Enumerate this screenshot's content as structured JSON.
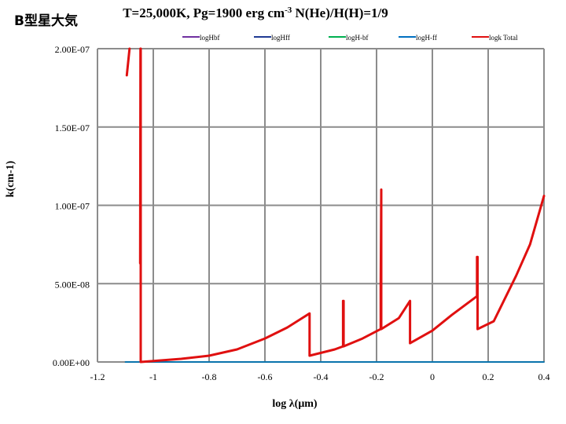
{
  "corner_label": "B型星大気",
  "chart_data": {
    "type": "line",
    "title": "T=25,000K, Pg=1900 erg cm-3 N(He)/H(H)=1/9",
    "title_parts": {
      "before": "T=25,000K, Pg=1900 erg cm",
      "sup": "-3",
      "after": " N(He)/H(H)=1/9"
    },
    "xlabel": "log λ(μm)",
    "ylabel": "k(cm-1)",
    "xlim": [
      -1.2,
      0.4
    ],
    "ylim": [
      0,
      2e-07
    ],
    "x_ticks": [
      -1.2,
      -1,
      -0.8,
      -0.6,
      -0.4,
      -0.2,
      0,
      0.2,
      0.4
    ],
    "x_tick_labels": [
      "-1.2",
      "-1",
      "-0.8",
      "-0.6",
      "-0.4",
      "-0.2",
      "0",
      "0.2",
      "0.4"
    ],
    "y_ticks": [
      0,
      5e-08,
      1e-07,
      1.5e-07,
      2e-07
    ],
    "y_tick_labels": [
      "0.00E+00",
      "5.00E-08",
      "1.00E-07",
      "1.50E-07",
      "2.00E-07"
    ],
    "grid": true,
    "legend_position": "top",
    "series": [
      {
        "name": "logHbf",
        "color": "#7030a0",
        "x": [
          -1.1,
          0.4
        ],
        "y": [
          0,
          0
        ]
      },
      {
        "name": "logHff",
        "color": "#1f3a93",
        "x": [
          -1.1,
          0.4
        ],
        "y": [
          0,
          0
        ]
      },
      {
        "name": "logH-bf",
        "color": "#00b050",
        "x": [
          -1.1,
          0.4
        ],
        "y": [
          0,
          0
        ]
      },
      {
        "name": "logH-ff",
        "color": "#0070c0",
        "x": [
          -1.1,
          0.4
        ],
        "y": [
          0,
          0
        ]
      },
      {
        "name": "logk Total",
        "color": "#e01010",
        "segments": [
          {
            "x": [
              -1.095,
              -1.085
            ],
            "y": [
              1.83e-07,
              2e-07
            ]
          },
          {
            "x": [
              -1.047,
              -1.046,
              -1.047
            ],
            "y": [
              6.3e-08,
              2e-07,
              6.3e-08
            ]
          },
          {
            "x": [
              -1.045,
              -1.045,
              -0.9,
              -0.8,
              -0.7,
              -0.6,
              -0.52,
              -0.44,
              -0.44,
              -0.35,
              -0.32,
              -0.32,
              -0.318,
              -0.318,
              -0.25,
              -0.185,
              -0.185,
              -0.183,
              -0.183,
              -0.183,
              -0.12,
              -0.08,
              -0.08,
              0,
              0.07,
              0.16,
              0.16,
              0.162,
              0.162,
              0.22,
              0.3,
              0.35,
              0.4
            ],
            "y": [
              2e-07,
              0,
              2e-09,
              4e-09,
              8e-09,
              1.5e-08,
              2.2e-08,
              3.1e-08,
              4e-09,
              8e-09,
              1e-08,
              3.9e-08,
              3.9e-08,
              1e-08,
              1.5e-08,
              2.1e-08,
              4.9e-08,
              1.1e-07,
              1e-07,
              2.1e-08,
              2.8e-08,
              3.9e-08,
              1.2e-08,
              2e-08,
              3e-08,
              4.2e-08,
              6.7e-08,
              6.7e-08,
              2.1e-08,
              2.6e-08,
              5.5e-08,
              7.5e-08,
              1.06e-07
            ]
          }
        ]
      }
    ]
  }
}
